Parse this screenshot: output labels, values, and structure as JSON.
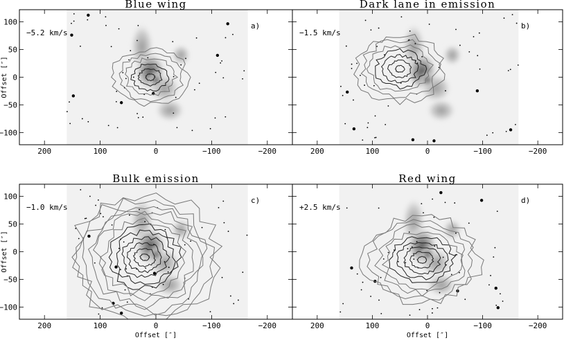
{
  "chart_data": [
    {
      "type": "contour",
      "panel_letter": "a)",
      "title": "Blue wing",
      "velocity_label": "−5.2 km/s",
      "xlabel": "",
      "ylabel": "Offset [″]",
      "xlim": [
        245,
        -245
      ],
      "ylim": [
        -122,
        122
      ],
      "x_ticks": [
        200,
        100,
        0,
        -100,
        -200
      ],
      "y_ticks": [
        100,
        50,
        0,
        -50,
        -100
      ],
      "contour_center": [
        10,
        0
      ],
      "contour_levels": 6
    },
    {
      "type": "contour",
      "panel_letter": "b)",
      "title": "Dark lane in emission",
      "velocity_label": "−1.5 km/s",
      "xlabel": "",
      "ylabel": "",
      "xlim": [
        245,
        -245
      ],
      "ylim": [
        -122,
        122
      ],
      "x_ticks": [
        200,
        100,
        0,
        -100,
        -200
      ],
      "y_ticks": [
        100,
        50,
        0,
        -50,
        -100
      ],
      "contour_center": [
        50,
        15
      ],
      "contour_levels": 7
    },
    {
      "type": "contour",
      "panel_letter": "c)",
      "title": "Bulk emission",
      "velocity_label": "−1.0 km/s",
      "xlabel": "Offset [″]",
      "ylabel": "Offset [″]",
      "xlim": [
        245,
        -245
      ],
      "ylim": [
        -122,
        122
      ],
      "x_ticks": [
        200,
        100,
        0,
        -100,
        -200
      ],
      "y_ticks": [
        100,
        50,
        0,
        -50,
        -100
      ],
      "contour_center": [
        20,
        -10
      ],
      "contour_levels": 12
    },
    {
      "type": "contour",
      "panel_letter": "d)",
      "title": "Red wing",
      "velocity_label": "+2.5 km/s",
      "xlabel": "Offset [″]",
      "ylabel": "",
      "xlim": [
        245,
        -245
      ],
      "ylim": [
        -122,
        122
      ],
      "x_ticks": [
        200,
        100,
        0,
        -100,
        -200
      ],
      "y_ticks": [
        100,
        50,
        0,
        -50,
        -100
      ],
      "contour_center": [
        10,
        -15
      ],
      "contour_levels": 9
    }
  ],
  "colors": {
    "frame": "#000000",
    "contour_dark": "#222222",
    "contour_light": "#777777",
    "image_bright": "#ffffff",
    "image_nebula": "#9a9a9a"
  }
}
